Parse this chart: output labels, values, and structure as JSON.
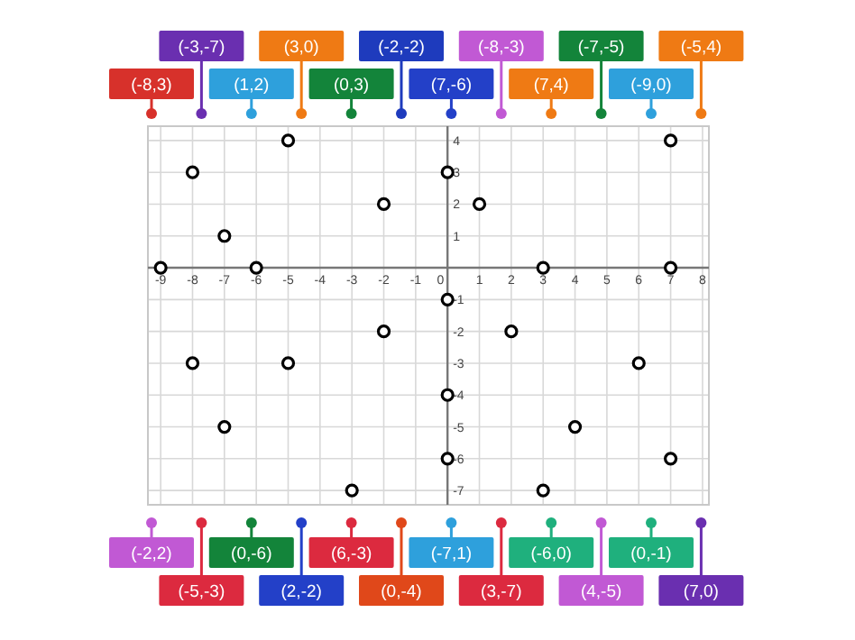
{
  "chart_data": {
    "type": "scatter",
    "x": [
      -8,
      -3,
      1,
      3,
      0,
      -2,
      7,
      -8,
      7,
      -7,
      -9,
      -5,
      -2,
      -5,
      0,
      2,
      6,
      0,
      -7,
      3,
      -6,
      4,
      0,
      7
    ],
    "values": [
      3,
      -7,
      2,
      0,
      3,
      -2,
      -6,
      -3,
      4,
      -5,
      0,
      4,
      2,
      -3,
      -6,
      -2,
      -3,
      -4,
      1,
      -7,
      0,
      -5,
      -1,
      0
    ],
    "color": "#000000",
    "marker": "circle",
    "grid": true,
    "xlim": [
      -9.4,
      8.2
    ],
    "ylim": [
      -7.45,
      4.45
    ],
    "xticks": [
      -9,
      -8,
      -7,
      -6,
      -5,
      -4,
      -3,
      -2,
      -1,
      0,
      1,
      2,
      3,
      4,
      5,
      6,
      7,
      8
    ],
    "yticks": [
      -7,
      -6,
      -5,
      -4,
      -3,
      -2,
      -1,
      {
        "value": 0,
        "label": null
      },
      1,
      2,
      3,
      4
    ],
    "annotations": [
      "(-8,3)",
      "(-3,-7)",
      "(1,2)",
      "(3,0)",
      "(0,3)",
      "(-2,-2)",
      "(7,-6)",
      "(-8,-3)",
      "(7,4)",
      "(-7,-5)",
      "(-9,0)",
      "(-5,4)",
      "(-2,2)",
      "(-5,-3)",
      "(0,-6)",
      "(2,-2)",
      "(6,-3)",
      "(0,-4)",
      "(-7,1)",
      "(3,-7)",
      "(-6,0)",
      "(4,-5)",
      "(0,-1)",
      "(7,0)"
    ]
  }
}
